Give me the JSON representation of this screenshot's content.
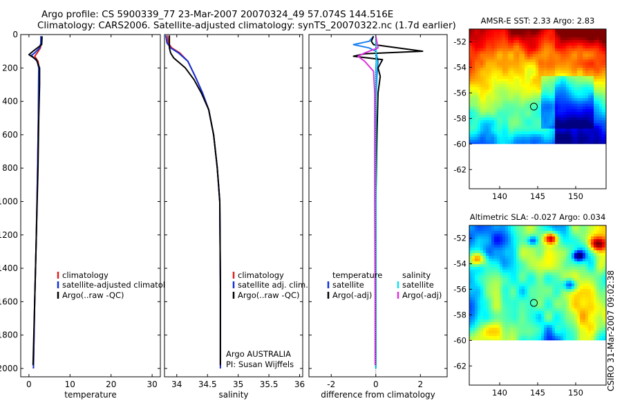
{
  "title": {
    "line1": "Argo profile: CS 5900339_77 23-Mar-2007 20070324_49 57.074S 144.516E",
    "line2": "Climatology: CARS2006. Satellite-adjusted climatology: synTS_20070322.nc (1.7d earlier)"
  },
  "credit": "CSIRO 31-Mar-2007 09:02:38",
  "colors": {
    "climatology": "#e0201e",
    "satellite": "#1030d8",
    "argo": "#000000",
    "sal_satellite": "#10e0f0",
    "sal_argo": "#e030e0",
    "temp_sat_diff": "#1a80f0"
  },
  "chart_data": [
    {
      "id": "temperature",
      "type": "line",
      "xlabel": "temperature",
      "ylabel": "",
      "xlim": [
        -2,
        32
      ],
      "ylim": [
        0,
        2050
      ],
      "y_reversed": true,
      "xticks": [
        0,
        10,
        20,
        30
      ],
      "yticks": [
        0,
        200,
        400,
        600,
        800,
        1000,
        1200,
        1400,
        1600,
        1800,
        2000
      ],
      "legend": [
        "climatology",
        "satellite-adjusted climatology",
        "Argo(..raw -QC)"
      ],
      "series": [
        {
          "name": "climatology",
          "color_key": "climatology",
          "points": [
            [
              3.0,
              10
            ],
            [
              3.0,
              50
            ],
            [
              2.8,
              80
            ],
            [
              2.0,
              110
            ],
            [
              1.4,
              130
            ],
            [
              2.2,
              160
            ],
            [
              2.5,
              200
            ],
            [
              2.4,
              300
            ],
            [
              2.3,
              500
            ],
            [
              2.1,
              800
            ],
            [
              1.8,
              1200
            ],
            [
              1.4,
              1600
            ],
            [
              1.1,
              2000
            ]
          ]
        },
        {
          "name": "satellite-adjusted climatology",
          "color_key": "satellite",
          "points": [
            [
              2.9,
              10
            ],
            [
              2.9,
              50
            ],
            [
              2.6,
              80
            ],
            [
              1.4,
              110
            ],
            [
              0.6,
              125
            ],
            [
              2.0,
              160
            ],
            [
              2.4,
              200
            ],
            [
              2.35,
              300
            ],
            [
              2.3,
              500
            ],
            [
              2.1,
              800
            ],
            [
              1.8,
              1200
            ],
            [
              1.4,
              1600
            ],
            [
              1.1,
              2000
            ]
          ]
        },
        {
          "name": "Argo(..raw -QC)",
          "color_key": "argo",
          "points": [
            [
              3.2,
              10
            ],
            [
              3.1,
              60
            ],
            [
              1.0,
              100
            ],
            [
              0.0,
              120
            ],
            [
              1.8,
              150
            ],
            [
              2.6,
              200
            ],
            [
              2.6,
              300
            ],
            [
              2.4,
              500
            ],
            [
              2.2,
              800
            ],
            [
              1.8,
              1200
            ],
            [
              1.4,
              1600
            ],
            [
              1.0,
              1980
            ]
          ]
        }
      ]
    },
    {
      "id": "salinity",
      "type": "line",
      "xlabel": "salinity",
      "xlim": [
        33.8,
        36.05
      ],
      "ylim": [
        0,
        2050
      ],
      "y_reversed": true,
      "xticks": [
        34,
        34.5,
        35,
        35.5,
        36
      ],
      "yticks": [
        0,
        200,
        400,
        600,
        800,
        1000,
        1200,
        1400,
        1600,
        1800,
        2000
      ],
      "legend": [
        "climatology",
        "satellite adj. clim.",
        "Argo(..raw -QC)"
      ],
      "note": [
        "Argo AUSTRALIA",
        "PI: Susan Wijffels"
      ],
      "series": [
        {
          "name": "climatology",
          "color_key": "climatology",
          "points": [
            [
              33.85,
              5
            ],
            [
              33.86,
              50
            ],
            [
              33.92,
              80
            ],
            [
              34.05,
              110
            ],
            [
              34.18,
              160
            ],
            [
              34.3,
              250
            ],
            [
              34.42,
              350
            ],
            [
              34.52,
              450
            ],
            [
              34.6,
              600
            ],
            [
              34.66,
              800
            ],
            [
              34.7,
              1000
            ],
            [
              34.71,
              1500
            ],
            [
              34.71,
              2000
            ]
          ]
        },
        {
          "name": "satellite adj. clim.",
          "color_key": "satellite",
          "points": [
            [
              33.82,
              5
            ],
            [
              33.84,
              50
            ],
            [
              33.9,
              80
            ],
            [
              34.03,
              110
            ],
            [
              34.18,
              160
            ],
            [
              34.3,
              250
            ],
            [
              34.42,
              350
            ],
            [
              34.52,
              450
            ],
            [
              34.6,
              600
            ],
            [
              34.66,
              800
            ],
            [
              34.7,
              1000
            ],
            [
              34.71,
              1500
            ],
            [
              34.71,
              2000
            ]
          ]
        },
        {
          "name": "Argo(..raw -QC)",
          "color_key": "argo",
          "points": [
            [
              33.88,
              5
            ],
            [
              33.88,
              80
            ],
            [
              33.9,
              110
            ],
            [
              33.95,
              140
            ],
            [
              34.14,
              200
            ],
            [
              34.28,
              270
            ],
            [
              34.4,
              350
            ],
            [
              34.52,
              450
            ],
            [
              34.6,
              600
            ],
            [
              34.66,
              800
            ],
            [
              34.7,
              1000
            ],
            [
              34.71,
              1500
            ],
            [
              34.71,
              1980
            ]
          ]
        }
      ]
    },
    {
      "id": "difference",
      "type": "line",
      "xlabel": "difference from climatology",
      "xlim": [
        -3,
        3.2
      ],
      "ylim": [
        0,
        2050
      ],
      "y_reversed": true,
      "xticks": [
        -2,
        0,
        2
      ],
      "yticks": [
        0,
        200,
        400,
        600,
        800,
        1000,
        1200,
        1400,
        1600,
        1800,
        2000
      ],
      "legend_temperature": {
        "heading": "temperature",
        "items": [
          "satellite",
          "Argo(-adj)"
        ]
      },
      "legend_salinity": {
        "heading": "salinity",
        "items": [
          "satellite",
          "Argo(-adj)"
        ]
      },
      "series": [
        {
          "name": "temperature satellite",
          "color_key": "temp_sat_diff",
          "points": [
            [
              -0.1,
              10
            ],
            [
              -0.3,
              40
            ],
            [
              -1.0,
              60
            ],
            [
              -0.3,
              80
            ],
            [
              0.0,
              100
            ],
            [
              0.1,
              160
            ],
            [
              0.05,
              250
            ],
            [
              0.0,
              400
            ],
            [
              0.0,
              2000
            ]
          ]
        },
        {
          "name": "temperature Argo(-adj)",
          "color_key": "argo",
          "points": [
            [
              -0.1,
              10
            ],
            [
              -0.2,
              40
            ],
            [
              -0.1,
              60
            ],
            [
              2.1,
              100
            ],
            [
              -0.5,
              115
            ],
            [
              -1.0,
              130
            ],
            [
              0.3,
              150
            ],
            [
              0.1,
              200
            ],
            [
              0.2,
              250
            ],
            [
              0.1,
              350
            ],
            [
              0.05,
              600
            ],
            [
              0.0,
              1000
            ],
            [
              0.0,
              1980
            ]
          ]
        },
        {
          "name": "salinity satellite",
          "color_key": "sal_satellite",
          "points": [
            [
              0.0,
              10
            ],
            [
              0.0,
              50
            ],
            [
              0.02,
              100
            ],
            [
              0.0,
              120
            ],
            [
              0.03,
              160
            ],
            [
              0.0,
              200
            ],
            [
              0.0,
              400
            ],
            [
              0.0,
              2000
            ]
          ]
        },
        {
          "name": "salinity Argo(-adj)",
          "color_key": "sal_argo",
          "points": [
            [
              0.0,
              10
            ],
            [
              0.1,
              80
            ],
            [
              -0.5,
              110
            ],
            [
              -0.8,
              130
            ],
            [
              -0.5,
              160
            ],
            [
              -0.1,
              220
            ],
            [
              -0.05,
              350
            ],
            [
              -0.05,
              600
            ],
            [
              -0.05,
              1000
            ],
            [
              -0.03,
              1600
            ],
            [
              -0.03,
              1980
            ]
          ]
        }
      ]
    },
    {
      "id": "sst_map",
      "type": "heatmap",
      "title": "AMSR-E SST: 2.33 Argo: 2.83",
      "xlim": [
        136,
        154
      ],
      "ylim": [
        -63.5,
        -51
      ],
      "xticks": [
        140,
        145,
        150
      ],
      "yticks": [
        -52,
        -54,
        -56,
        -58,
        -60,
        -62
      ],
      "marker": {
        "lon": 144.5,
        "lat": -57.07
      },
      "data_bottom": -60
    },
    {
      "id": "sla_map",
      "type": "heatmap",
      "title": "Altimetric SLA: -0.027 Argo: 0.034",
      "xlim": [
        136,
        154
      ],
      "ylim": [
        -63.5,
        -51
      ],
      "xticks": [
        140,
        145,
        150
      ],
      "yticks": [
        -52,
        -54,
        -56,
        -58,
        -60,
        -62
      ],
      "marker": {
        "lon": 144.5,
        "lat": -57.07
      },
      "data_bottom": -60
    }
  ]
}
